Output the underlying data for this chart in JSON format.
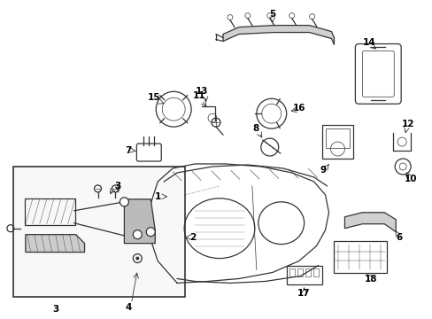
{
  "background_color": "#ffffff",
  "line_color": "#333333",
  "label_color": "#000000",
  "figsize": [
    4.89,
    3.6
  ],
  "dpi": 100
}
